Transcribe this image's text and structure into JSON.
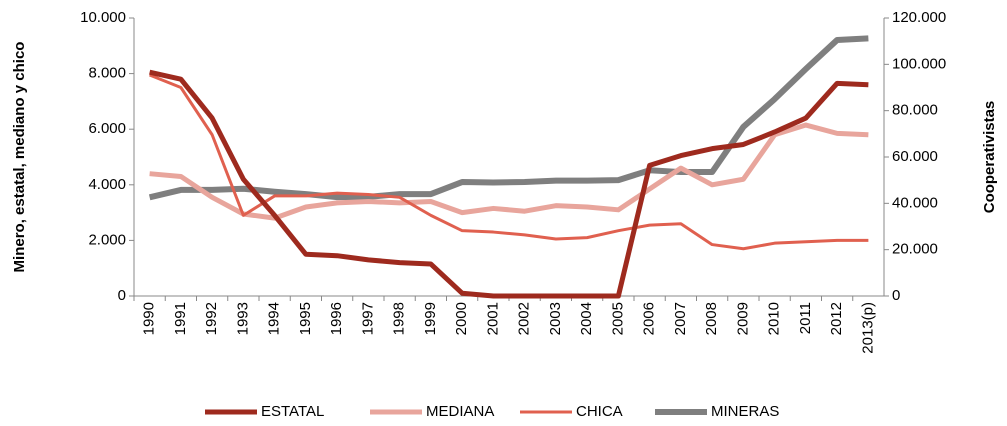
{
  "chart_data": {
    "type": "line",
    "y_label": "Minero, estatal, mediano y chico",
    "y2_label": "Cooperativistas",
    "categories": [
      "1990",
      "1991",
      "1992",
      "1993",
      "1994",
      "1995",
      "1996",
      "1997",
      "1998",
      "1999",
      "2000",
      "2001",
      "2002",
      "2003",
      "2004",
      "2005",
      "2006",
      "2007",
      "2008",
      "2009",
      "2010",
      "2011",
      "2012",
      "2013(p)"
    ],
    "series": [
      {
        "name": "ESTATAL",
        "color": "#9e2a1e",
        "values": [
          8050,
          7800,
          6400,
          4200,
          2900,
          1500,
          1450,
          1300,
          1200,
          1150,
          100,
          0,
          0,
          0,
          0,
          0,
          4700,
          5050,
          5300,
          5450,
          5900,
          6400,
          7650,
          7600
        ]
      },
      {
        "name": "MEDIANA",
        "color": "#e8a59c",
        "values": [
          4400,
          4300,
          3550,
          2950,
          2800,
          3200,
          3350,
          3400,
          3350,
          3400,
          3000,
          3150,
          3050,
          3250,
          3200,
          3100,
          3850,
          4600,
          4000,
          4200,
          5800,
          6150,
          5850,
          5800
        ]
      },
      {
        "name": "CHICA",
        "color": "#e0604f",
        "values": [
          7950,
          7500,
          5800,
          2900,
          3600,
          3600,
          3700,
          3650,
          3550,
          2900,
          2350,
          2300,
          2200,
          2050,
          2100,
          2350,
          2550,
          2600,
          1850,
          1700,
          1900,
          1950,
          2000,
          2000
        ]
      },
      {
        "name": "MINERAS",
        "color": "#7f7f7f",
        "axis": "y2",
        "values": [
          42600,
          45800,
          45800,
          46300,
          45000,
          44000,
          42700,
          42800,
          44000,
          44000,
          49200,
          49000,
          49200,
          49800,
          49800,
          50000,
          54300,
          53500,
          53500,
          73000,
          85000,
          98000,
          110500,
          111200
        ]
      }
    ],
    "ylim": [
      0,
      10000
    ],
    "yticks": [
      0,
      {
        "value": 2000,
        "label": "2.000"
      },
      {
        "value": 4000,
        "label": "4.000"
      },
      {
        "value": 6000,
        "label": "6.000"
      },
      {
        "value": 8000,
        "label": "8.000"
      },
      {
        "value": 10000,
        "label": "10.000"
      }
    ],
    "y2lim": [
      0,
      120000
    ],
    "y2ticks": [
      0,
      {
        "value": 20000,
        "label": "20.000"
      },
      {
        "value": 40000,
        "label": "40.000"
      },
      {
        "value": 60000,
        "label": "60.000"
      },
      {
        "value": 80000,
        "label": "80.000"
      },
      {
        "value": 100000,
        "label": "100.000"
      },
      {
        "value": 120000,
        "label": "120.000"
      }
    ],
    "legend": "bottom"
  }
}
